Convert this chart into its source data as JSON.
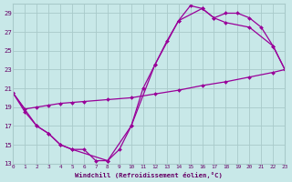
{
  "xlabel": "Windchill (Refroidissement éolien,°C)",
  "bg_color": "#c8e8e8",
  "grid_color": "#a8caca",
  "line_color": "#990099",
  "marker_color": "#990099",
  "xlim": [
    0,
    23
  ],
  "ylim": [
    13,
    30
  ],
  "yticks": [
    13,
    15,
    17,
    19,
    21,
    23,
    25,
    27,
    29
  ],
  "xticks": [
    0,
    1,
    2,
    3,
    4,
    5,
    6,
    7,
    8,
    9,
    10,
    11,
    12,
    13,
    14,
    15,
    16,
    17,
    18,
    19,
    20,
    21,
    22,
    23
  ],
  "font_color": "#660066",
  "series": [
    {
      "x": [
        0,
        1,
        2,
        3,
        4,
        5,
        6,
        7,
        8,
        9,
        10,
        11,
        12,
        13,
        14,
        15,
        16,
        17,
        18,
        19,
        20,
        21,
        22,
        23
      ],
      "y": [
        20.5,
        18.5,
        17.0,
        16.2,
        15.0,
        14.5,
        14.5,
        13.3,
        13.3,
        14.5,
        17.0,
        21.0,
        23.5,
        26.0,
        28.2,
        29.8,
        29.5,
        28.5,
        29.0,
        29.0,
        28.5,
        27.5,
        25.5,
        23.0
      ]
    },
    {
      "x": [
        0,
        1,
        2,
        3,
        4,
        5,
        6,
        8,
        10,
        12,
        14,
        16,
        18,
        20,
        22,
        23
      ],
      "y": [
        20.5,
        18.8,
        19.0,
        19.2,
        19.4,
        19.5,
        19.6,
        19.8,
        20.0,
        20.4,
        20.8,
        21.3,
        21.7,
        22.2,
        22.7,
        23.0
      ]
    },
    {
      "x": [
        0,
        2,
        3,
        4,
        5,
        8,
        10,
        12,
        14,
        16,
        17,
        18,
        20,
        22,
        23
      ],
      "y": [
        20.5,
        17.0,
        16.2,
        15.0,
        14.5,
        13.3,
        17.0,
        23.5,
        28.2,
        29.5,
        28.5,
        28.0,
        27.5,
        25.5,
        23.0
      ]
    }
  ]
}
